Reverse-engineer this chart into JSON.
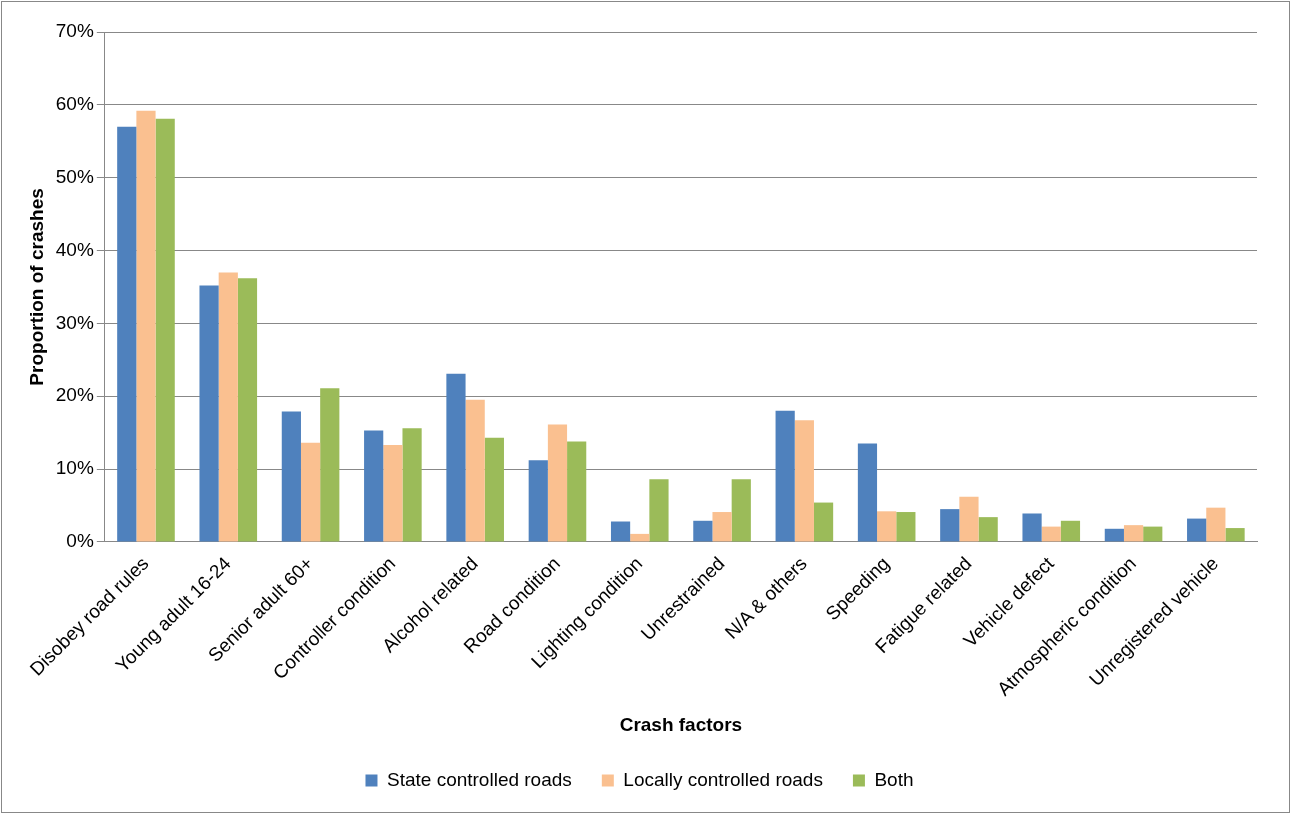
{
  "chart_data": {
    "type": "bar",
    "xlabel": "Crash factors",
    "ylabel": "Proportion of crashes",
    "categories": [
      "Disobey road rules",
      "Young adult 16-24",
      "Senior adult 60+",
      "Controller condition",
      "Alcohol related",
      "Road condition",
      "Lighting condition",
      "Unrestrained",
      "N/A & others",
      "Speeding",
      "Fatigue related",
      "Vehicle defect",
      "Atmospheric condition",
      "Unregistered vehicle"
    ],
    "series": [
      {
        "name": "State controlled roads",
        "color": "#4f81bd",
        "values": [
          57.0,
          35.2,
          17.9,
          15.3,
          23.1,
          11.2,
          2.8,
          2.9,
          18.0,
          13.5,
          4.5,
          3.9,
          1.8,
          3.2
        ]
      },
      {
        "name": "Locally controlled roads",
        "color": "#fac090",
        "values": [
          59.2,
          37.0,
          13.6,
          13.3,
          19.5,
          16.1,
          1.1,
          4.1,
          16.7,
          4.2,
          6.2,
          2.1,
          2.3,
          4.7
        ]
      },
      {
        "name": "Both",
        "color": "#9bbb59",
        "values": [
          58.1,
          36.2,
          21.1,
          15.6,
          14.3,
          13.8,
          8.6,
          8.6,
          5.4,
          4.1,
          3.4,
          2.9,
          2.1,
          1.9
        ]
      }
    ],
    "ylim": [
      0,
      70
    ],
    "yticks": [
      {
        "value": 0,
        "label": "0%"
      },
      {
        "value": 10,
        "label": "10%"
      },
      {
        "value": 20,
        "label": "20%"
      },
      {
        "value": 30,
        "label": "30%"
      },
      {
        "value": 40,
        "label": "40%"
      },
      {
        "value": 50,
        "label": "50%"
      },
      {
        "value": 60,
        "label": "60%"
      },
      {
        "value": 70,
        "label": "70%"
      }
    ],
    "grid": "y",
    "legend": "bottom"
  }
}
